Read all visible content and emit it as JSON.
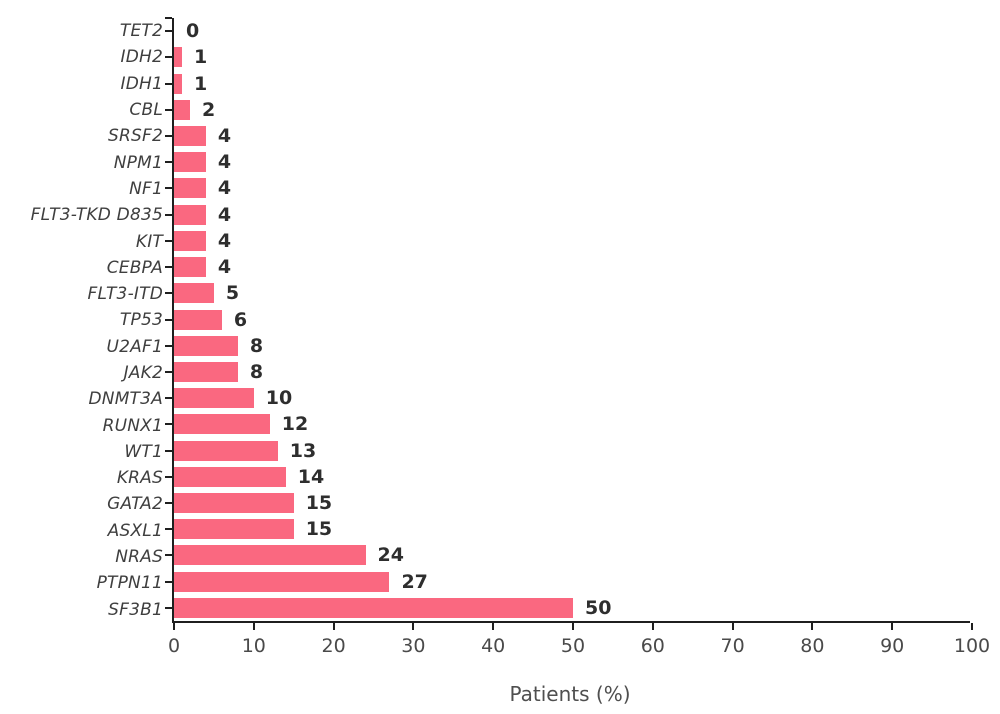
{
  "chart_data": {
    "type": "bar",
    "orientation": "horizontal",
    "title": "",
    "xlabel": "Patients (%)",
    "ylabel": "",
    "categories": [
      "TET2",
      "IDH2",
      "IDH1",
      "CBL",
      "SRSF2",
      "NPM1",
      "NF1",
      "FLT3-TKD D835",
      "KIT",
      "CEBPA",
      "FLT3-ITD",
      "TP53",
      "U2AF1",
      "JAK2",
      "DNMT3A",
      "RUNX1",
      "WT1",
      "KRAS",
      "GATA2",
      "ASXL1",
      "NRAS",
      "PTPN11",
      "SF3B1"
    ],
    "values": [
      0,
      1,
      1,
      2,
      4,
      4,
      4,
      4,
      4,
      4,
      5,
      6,
      8,
      8,
      10,
      12,
      13,
      14,
      15,
      15,
      24,
      27,
      50
    ],
    "xlim": [
      0,
      100
    ],
    "xticks": [
      0,
      10,
      20,
      30,
      40,
      50,
      60,
      70,
      80,
      90,
      100
    ],
    "grid": false,
    "legend": false,
    "data_labels": true,
    "colors": {
      "bar": "#fa6880",
      "axis": "#1f1f1f",
      "category_label": "#3f3f3f",
      "value_label": "#2e2e2e",
      "tick_label": "#4a4a4a"
    }
  }
}
